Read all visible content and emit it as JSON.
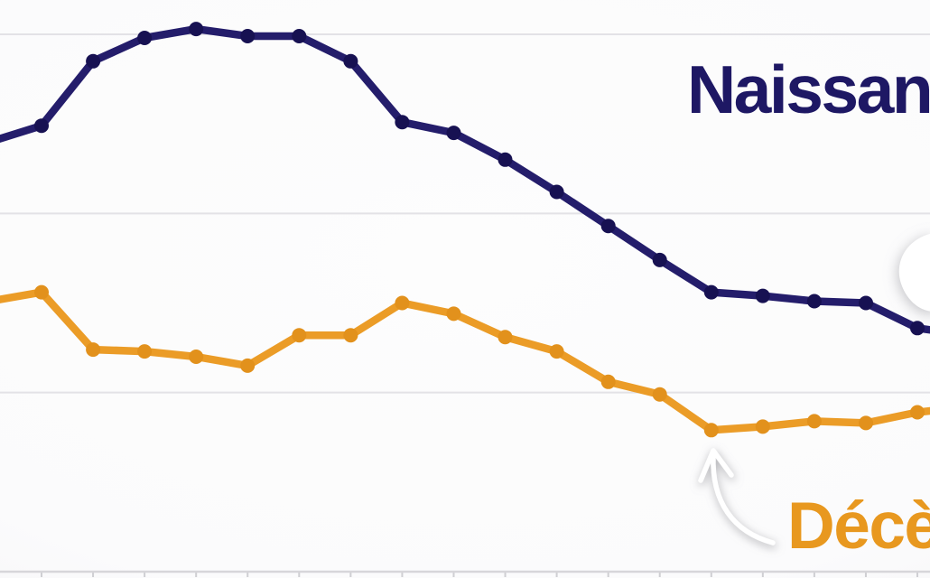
{
  "chart_data": {
    "type": "line",
    "title": "",
    "xlabel": "",
    "ylabel": "",
    "x_axis": {
      "tick_count": 18,
      "labels_visible": false,
      "ticks_visible": true
    },
    "y_axis": {
      "labels_visible": false,
      "ylim": [
        0,
        3.2
      ],
      "gridline_values": [
        1,
        2,
        3
      ],
      "baseline_value": 0
    },
    "grid": "horizontal",
    "legend_position": "inline-annotations",
    "series": [
      {
        "name": "Naissances",
        "color": "#241d6b",
        "marker_color": "#171152",
        "pre_edge_value": 2.4,
        "values": [
          2.49,
          2.85,
          2.98,
          3.03,
          2.99,
          2.99,
          2.85,
          2.51,
          2.45,
          2.3,
          2.12,
          1.93,
          1.74,
          1.56,
          1.54,
          1.51,
          1.5,
          1.36
        ],
        "post_edge_value": 1.32
      },
      {
        "name": "Décès",
        "color": "#eb9c27",
        "marker_color": "#e2911c",
        "pre_edge_value": 1.51,
        "values": [
          1.56,
          1.24,
          1.23,
          1.2,
          1.15,
          1.32,
          1.32,
          1.5,
          1.44,
          1.31,
          1.23,
          1.06,
          0.99,
          0.79,
          0.81,
          0.84,
          0.83,
          0.89
        ],
        "post_edge_value": 0.92
      }
    ]
  },
  "annotations": {
    "naissances_label": "Naissances",
    "deces_label": "Décès",
    "arrow": "hand-drawn-white-arrow-pointing-to-deces-minimum"
  },
  "colors": {
    "background": "#fbfbfc",
    "gridline": "#e3e2e6",
    "axis_line": "#d7d6da",
    "tick": "#cfcfd3",
    "naissances_text": "#1e1864",
    "deces_text": "#e8981f",
    "annotation_arrow": "#ffffff",
    "arrow_shadow": "#8a8a90"
  }
}
